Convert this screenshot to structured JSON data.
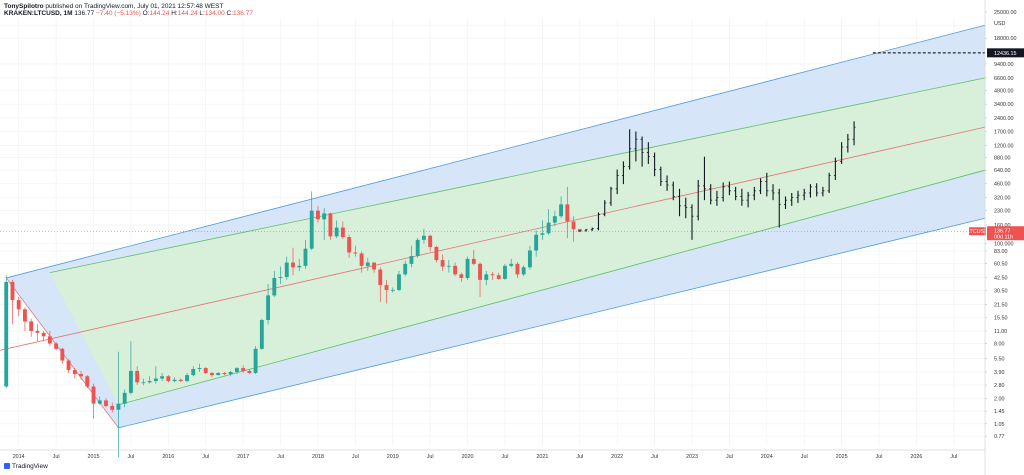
{
  "header": {
    "publisher": "TonySpilotro",
    "published_text": "published on TradingView.com, July 01, 2021 12:57:48 WEST",
    "symbol": "KRAKEN:LTCUSD, 1M",
    "last": "136.77",
    "change": "−7.40 (−5.13%)",
    "o_label": "O:",
    "o_value": "144.24",
    "h_label": "H:",
    "h_value": "144.24",
    "l_label": "L:",
    "l_value": "134.00",
    "c_label": "C:",
    "c_value": "136.77"
  },
  "brand": {
    "name": "TradingView",
    "icon": "tradingview-logo-icon"
  },
  "price_axis": {
    "currency": "USD",
    "ticks": [
      "25000.00",
      "18000.00",
      "12436.15",
      "9400.00",
      "6600.00",
      "4800.00",
      "3400.00",
      "2400.00",
      "1700.00",
      "1200.00",
      "880.00",
      "640.00",
      "460.00",
      "320.00",
      "230.00",
      "160.00",
      "136.77",
      "100.000",
      "83.00",
      "60.50",
      "42.50",
      "30.50",
      "21.50",
      "15.50",
      "11.00",
      "8.00",
      "5.50",
      "3.90",
      "2.80",
      "2.00",
      "1.45",
      "1.05",
      "0.77"
    ],
    "target_label": "12436.15",
    "symbol_tag": "LTCUSD",
    "last_price_label": "136.77",
    "countdown_label": "00d 11h"
  },
  "time_axis": {
    "labels": [
      "2014",
      "Jul",
      "2015",
      "Jul",
      "2016",
      "Jul",
      "2017",
      "Jul",
      "2018",
      "Jul",
      "2019",
      "Jul",
      "2020",
      "Jul",
      "2021",
      "Jul",
      "2022",
      "Jul",
      "2023",
      "Jul",
      "2024",
      "Jul",
      "2025",
      "Jul",
      "2026",
      "Jul"
    ]
  },
  "colors": {
    "up": "#26a69a",
    "down": "#ef5350",
    "bar": "#131722",
    "outer_band": "#cfe2f7",
    "inner_band": "#d8f0d6",
    "outer_line": "#4f9be0",
    "inner_line": "#5fbf63",
    "median_line": "#e57373",
    "target_line": "#000000"
  },
  "chart_data": {
    "type": "candlestick",
    "interval": "1M",
    "y_scale": "log",
    "ylim": [
      0.6,
      30000
    ],
    "xlim": [
      "2013-10",
      "2026-12"
    ],
    "grid": true,
    "candles": [
      {
        "t": "2013-11",
        "o": 2.7,
        "h": 45,
        "l": 2.6,
        "c": 38
      },
      {
        "t": "2013-12",
        "o": 38,
        "h": 40,
        "l": 13,
        "c": 24
      },
      {
        "t": "2014-01",
        "o": 24,
        "h": 26,
        "l": 16,
        "c": 19
      },
      {
        "t": "2014-02",
        "o": 19,
        "h": 20,
        "l": 11,
        "c": 14
      },
      {
        "t": "2014-03",
        "o": 14,
        "h": 15,
        "l": 9.5,
        "c": 11
      },
      {
        "t": "2014-04",
        "o": 11,
        "h": 13,
        "l": 8.5,
        "c": 10.5
      },
      {
        "t": "2014-05",
        "o": 10.5,
        "h": 11,
        "l": 8.5,
        "c": 9.6
      },
      {
        "t": "2014-06",
        "o": 9.6,
        "h": 11,
        "l": 7.5,
        "c": 8.0
      },
      {
        "t": "2014-07",
        "o": 8.0,
        "h": 8.3,
        "l": 6.8,
        "c": 7.0
      },
      {
        "t": "2014-08",
        "o": 7.0,
        "h": 7.2,
        "l": 4.8,
        "c": 5.2
      },
      {
        "t": "2014-09",
        "o": 5.2,
        "h": 5.4,
        "l": 3.8,
        "c": 4.1
      },
      {
        "t": "2014-10",
        "o": 4.1,
        "h": 4.3,
        "l": 3.3,
        "c": 3.7
      },
      {
        "t": "2014-11",
        "o": 3.7,
        "h": 4.0,
        "l": 3.2,
        "c": 3.5
      },
      {
        "t": "2014-12",
        "o": 3.5,
        "h": 3.6,
        "l": 2.6,
        "c": 2.7
      },
      {
        "t": "2015-01",
        "o": 2.7,
        "h": 2.9,
        "l": 1.2,
        "c": 1.75
      },
      {
        "t": "2015-02",
        "o": 1.75,
        "h": 2.1,
        "l": 1.7,
        "c": 1.9
      },
      {
        "t": "2015-03",
        "o": 1.9,
        "h": 2.0,
        "l": 1.6,
        "c": 1.65
      },
      {
        "t": "2015-04",
        "o": 1.65,
        "h": 1.8,
        "l": 1.4,
        "c": 1.5
      },
      {
        "t": "2015-05",
        "o": 1.5,
        "h": 6.5,
        "l": 0.45,
        "c": 1.75
      },
      {
        "t": "2015-06",
        "o": 1.75,
        "h": 2.5,
        "l": 1.6,
        "c": 2.3
      },
      {
        "t": "2015-07",
        "o": 2.3,
        "h": 8.5,
        "l": 2.2,
        "c": 4.0
      },
      {
        "t": "2015-08",
        "o": 4.0,
        "h": 4.5,
        "l": 2.8,
        "c": 3.0
      },
      {
        "t": "2015-09",
        "o": 3.0,
        "h": 3.3,
        "l": 2.8,
        "c": 3.0
      },
      {
        "t": "2015-10",
        "o": 3.0,
        "h": 3.5,
        "l": 2.9,
        "c": 3.1
      },
      {
        "t": "2015-11",
        "o": 3.1,
        "h": 4.5,
        "l": 2.9,
        "c": 3.3
      },
      {
        "t": "2015-12",
        "o": 3.3,
        "h": 3.8,
        "l": 3.1,
        "c": 3.5
      },
      {
        "t": "2016-01",
        "o": 3.5,
        "h": 3.6,
        "l": 3.0,
        "c": 3.1
      },
      {
        "t": "2016-02",
        "o": 3.1,
        "h": 3.4,
        "l": 3.0,
        "c": 3.2
      },
      {
        "t": "2016-03",
        "o": 3.2,
        "h": 3.3,
        "l": 3.0,
        "c": 3.1
      },
      {
        "t": "2016-04",
        "o": 3.1,
        "h": 3.8,
        "l": 3.0,
        "c": 3.6
      },
      {
        "t": "2016-05",
        "o": 3.6,
        "h": 4.5,
        "l": 3.5,
        "c": 4.2
      },
      {
        "t": "2016-06",
        "o": 4.2,
        "h": 4.8,
        "l": 3.9,
        "c": 4.3
      },
      {
        "t": "2016-07",
        "o": 4.3,
        "h": 4.4,
        "l": 3.7,
        "c": 3.8
      },
      {
        "t": "2016-08",
        "o": 3.8,
        "h": 3.9,
        "l": 3.4,
        "c": 3.6
      },
      {
        "t": "2016-09",
        "o": 3.6,
        "h": 3.9,
        "l": 3.6,
        "c": 3.8
      },
      {
        "t": "2016-10",
        "o": 3.8,
        "h": 3.9,
        "l": 3.6,
        "c": 3.7
      },
      {
        "t": "2016-11",
        "o": 3.7,
        "h": 4.0,
        "l": 3.5,
        "c": 3.9
      },
      {
        "t": "2016-12",
        "o": 3.9,
        "h": 4.4,
        "l": 3.7,
        "c": 4.3
      },
      {
        "t": "2017-01",
        "o": 4.3,
        "h": 4.6,
        "l": 3.8,
        "c": 4.0
      },
      {
        "t": "2017-02",
        "o": 4.0,
        "h": 4.2,
        "l": 3.7,
        "c": 3.8
      },
      {
        "t": "2017-03",
        "o": 3.8,
        "h": 7.5,
        "l": 3.7,
        "c": 7.0
      },
      {
        "t": "2017-04",
        "o": 7.0,
        "h": 15,
        "l": 6.8,
        "c": 14.5
      },
      {
        "t": "2017-05",
        "o": 14.5,
        "h": 36,
        "l": 13,
        "c": 27
      },
      {
        "t": "2017-06",
        "o": 27,
        "h": 50,
        "l": 26,
        "c": 42
      },
      {
        "t": "2017-07",
        "o": 42,
        "h": 56,
        "l": 36,
        "c": 43
      },
      {
        "t": "2017-08",
        "o": 43,
        "h": 72,
        "l": 40,
        "c": 62
      },
      {
        "t": "2017-09",
        "o": 62,
        "h": 90,
        "l": 45,
        "c": 55
      },
      {
        "t": "2017-10",
        "o": 55,
        "h": 68,
        "l": 50,
        "c": 57
      },
      {
        "t": "2017-11",
        "o": 57,
        "h": 110,
        "l": 53,
        "c": 88
      },
      {
        "t": "2017-12",
        "o": 88,
        "h": 375,
        "l": 85,
        "c": 230
      },
      {
        "t": "2018-01",
        "o": 230,
        "h": 260,
        "l": 170,
        "c": 185
      },
      {
        "t": "2018-02",
        "o": 185,
        "h": 245,
        "l": 110,
        "c": 215
      },
      {
        "t": "2018-03",
        "o": 215,
        "h": 220,
        "l": 110,
        "c": 120
      },
      {
        "t": "2018-04",
        "o": 120,
        "h": 180,
        "l": 115,
        "c": 150
      },
      {
        "t": "2018-05",
        "o": 150,
        "h": 175,
        "l": 112,
        "c": 118
      },
      {
        "t": "2018-06",
        "o": 118,
        "h": 125,
        "l": 70,
        "c": 80
      },
      {
        "t": "2018-07",
        "o": 80,
        "h": 95,
        "l": 72,
        "c": 78
      },
      {
        "t": "2018-08",
        "o": 78,
        "h": 82,
        "l": 48,
        "c": 57
      },
      {
        "t": "2018-09",
        "o": 57,
        "h": 70,
        "l": 50,
        "c": 62
      },
      {
        "t": "2018-10",
        "o": 62,
        "h": 62,
        "l": 48,
        "c": 52
      },
      {
        "t": "2018-11",
        "o": 52,
        "h": 55,
        "l": 23,
        "c": 35
      },
      {
        "t": "2018-12",
        "o": 35,
        "h": 40,
        "l": 22,
        "c": 31
      },
      {
        "t": "2019-01",
        "o": 31,
        "h": 33,
        "l": 29,
        "c": 31
      },
      {
        "t": "2019-02",
        "o": 31,
        "h": 50,
        "l": 30,
        "c": 46
      },
      {
        "t": "2019-03",
        "o": 46,
        "h": 65,
        "l": 44,
        "c": 60
      },
      {
        "t": "2019-04",
        "o": 60,
        "h": 95,
        "l": 55,
        "c": 73
      },
      {
        "t": "2019-05",
        "o": 73,
        "h": 115,
        "l": 70,
        "c": 110
      },
      {
        "t": "2019-06",
        "o": 110,
        "h": 145,
        "l": 100,
        "c": 122
      },
      {
        "t": "2019-07",
        "o": 122,
        "h": 125,
        "l": 82,
        "c": 92
      },
      {
        "t": "2019-08",
        "o": 92,
        "h": 95,
        "l": 62,
        "c": 66
      },
      {
        "t": "2019-09",
        "o": 66,
        "h": 76,
        "l": 50,
        "c": 56
      },
      {
        "t": "2019-10",
        "o": 56,
        "h": 66,
        "l": 48,
        "c": 57
      },
      {
        "t": "2019-11",
        "o": 57,
        "h": 62,
        "l": 44,
        "c": 46
      },
      {
        "t": "2019-12",
        "o": 46,
        "h": 48,
        "l": 38,
        "c": 42
      },
      {
        "t": "2020-01",
        "o": 42,
        "h": 72,
        "l": 40,
        "c": 68
      },
      {
        "t": "2020-02",
        "o": 68,
        "h": 85,
        "l": 58,
        "c": 60
      },
      {
        "t": "2020-03",
        "o": 60,
        "h": 62,
        "l": 26,
        "c": 40
      },
      {
        "t": "2020-04",
        "o": 40,
        "h": 50,
        "l": 35,
        "c": 46
      },
      {
        "t": "2020-05",
        "o": 46,
        "h": 49,
        "l": 40,
        "c": 45
      },
      {
        "t": "2020-06",
        "o": 45,
        "h": 48,
        "l": 40,
        "c": 41
      },
      {
        "t": "2020-07",
        "o": 41,
        "h": 60,
        "l": 40,
        "c": 57
      },
      {
        "t": "2020-08",
        "o": 57,
        "h": 68,
        "l": 55,
        "c": 60
      },
      {
        "t": "2020-09",
        "o": 60,
        "h": 63,
        "l": 42,
        "c": 46
      },
      {
        "t": "2020-10",
        "o": 46,
        "h": 58,
        "l": 44,
        "c": 55
      },
      {
        "t": "2020-11",
        "o": 55,
        "h": 95,
        "l": 52,
        "c": 84
      },
      {
        "t": "2020-12",
        "o": 84,
        "h": 140,
        "l": 72,
        "c": 125
      },
      {
        "t": "2021-01",
        "o": 125,
        "h": 180,
        "l": 110,
        "c": 130
      },
      {
        "t": "2021-02",
        "o": 130,
        "h": 240,
        "l": 125,
        "c": 170
      },
      {
        "t": "2021-03",
        "o": 170,
        "h": 230,
        "l": 155,
        "c": 200
      },
      {
        "t": "2021-04",
        "o": 200,
        "h": 330,
        "l": 190,
        "c": 270
      },
      {
        "t": "2021-05",
        "o": 270,
        "h": 420,
        "l": 115,
        "c": 175
      },
      {
        "t": "2021-06",
        "o": 175,
        "h": 200,
        "l": 105,
        "c": 144
      },
      {
        "t": "2021-07",
        "o": 144.24,
        "h": 144.24,
        "l": 134.0,
        "c": 136.77
      }
    ],
    "projection_bars": [
      {
        "t": "2021-07",
        "o": 137,
        "h": 140,
        "l": 134,
        "c": 138
      },
      {
        "t": "2021-08",
        "o": 138,
        "h": 145,
        "l": 135,
        "c": 142
      },
      {
        "t": "2021-09",
        "o": 142,
        "h": 150,
        "l": 138,
        "c": 146
      },
      {
        "t": "2021-10",
        "o": 146,
        "h": 220,
        "l": 140,
        "c": 210
      },
      {
        "t": "2021-11",
        "o": 210,
        "h": 300,
        "l": 200,
        "c": 280
      },
      {
        "t": "2021-12",
        "o": 280,
        "h": 420,
        "l": 260,
        "c": 400
      },
      {
        "t": "2022-01",
        "o": 400,
        "h": 650,
        "l": 350,
        "c": 560
      },
      {
        "t": "2022-02",
        "o": 560,
        "h": 800,
        "l": 450,
        "c": 700
      },
      {
        "t": "2022-03",
        "o": 700,
        "h": 1800,
        "l": 650,
        "c": 1100
      },
      {
        "t": "2022-04",
        "o": 1100,
        "h": 1700,
        "l": 800,
        "c": 1400
      },
      {
        "t": "2022-05",
        "o": 1400,
        "h": 1500,
        "l": 700,
        "c": 1000
      },
      {
        "t": "2022-06",
        "o": 1000,
        "h": 1300,
        "l": 750,
        "c": 900
      },
      {
        "t": "2022-07",
        "o": 900,
        "h": 1000,
        "l": 550,
        "c": 650
      },
      {
        "t": "2022-08",
        "o": 650,
        "h": 700,
        "l": 430,
        "c": 480
      },
      {
        "t": "2022-09",
        "o": 480,
        "h": 560,
        "l": 380,
        "c": 440
      },
      {
        "t": "2022-10",
        "o": 440,
        "h": 480,
        "l": 300,
        "c": 330
      },
      {
        "t": "2022-11",
        "o": 330,
        "h": 400,
        "l": 200,
        "c": 260
      },
      {
        "t": "2022-12",
        "o": 260,
        "h": 320,
        "l": 190,
        "c": 250
      },
      {
        "t": "2023-01",
        "o": 250,
        "h": 270,
        "l": 110,
        "c": 200
      },
      {
        "t": "2023-02",
        "o": 200,
        "h": 500,
        "l": 180,
        "c": 430
      },
      {
        "t": "2023-03",
        "o": 430,
        "h": 900,
        "l": 300,
        "c": 400
      },
      {
        "t": "2023-04",
        "o": 400,
        "h": 450,
        "l": 270,
        "c": 300
      },
      {
        "t": "2023-05",
        "o": 300,
        "h": 380,
        "l": 260,
        "c": 320
      },
      {
        "t": "2023-06",
        "o": 320,
        "h": 470,
        "l": 290,
        "c": 420
      },
      {
        "t": "2023-07",
        "o": 420,
        "h": 480,
        "l": 340,
        "c": 380
      },
      {
        "t": "2023-08",
        "o": 380,
        "h": 420,
        "l": 300,
        "c": 330
      },
      {
        "t": "2023-09",
        "o": 330,
        "h": 400,
        "l": 260,
        "c": 300
      },
      {
        "t": "2023-10",
        "o": 300,
        "h": 370,
        "l": 250,
        "c": 340
      },
      {
        "t": "2023-11",
        "o": 340,
        "h": 420,
        "l": 300,
        "c": 380
      },
      {
        "t": "2023-12",
        "o": 380,
        "h": 520,
        "l": 350,
        "c": 480
      },
      {
        "t": "2024-01",
        "o": 480,
        "h": 600,
        "l": 330,
        "c": 380
      },
      {
        "t": "2024-02",
        "o": 380,
        "h": 450,
        "l": 300,
        "c": 360
      },
      {
        "t": "2024-03",
        "o": 360,
        "h": 400,
        "l": 150,
        "c": 270
      },
      {
        "t": "2024-04",
        "o": 270,
        "h": 330,
        "l": 240,
        "c": 300
      },
      {
        "t": "2024-05",
        "o": 300,
        "h": 360,
        "l": 260,
        "c": 320
      },
      {
        "t": "2024-06",
        "o": 320,
        "h": 380,
        "l": 280,
        "c": 340
      },
      {
        "t": "2024-07",
        "o": 340,
        "h": 400,
        "l": 300,
        "c": 360
      },
      {
        "t": "2024-08",
        "o": 360,
        "h": 450,
        "l": 320,
        "c": 420
      },
      {
        "t": "2024-09",
        "o": 420,
        "h": 460,
        "l": 330,
        "c": 360
      },
      {
        "t": "2024-10",
        "o": 360,
        "h": 420,
        "l": 330,
        "c": 380
      },
      {
        "t": "2024-11",
        "o": 380,
        "h": 600,
        "l": 360,
        "c": 560
      },
      {
        "t": "2024-12",
        "o": 560,
        "h": 880,
        "l": 500,
        "c": 800
      },
      {
        "t": "2025-01",
        "o": 800,
        "h": 1300,
        "l": 750,
        "c": 1150
      },
      {
        "t": "2025-02",
        "o": 1150,
        "h": 1600,
        "l": 1000,
        "c": 1400
      },
      {
        "t": "2025-03",
        "o": 1400,
        "h": 2200,
        "l": 1200,
        "c": 1900
      }
    ],
    "channel": {
      "median": [
        [
          "2013-09",
          6.5
        ],
        [
          "2026-12",
          1900
        ]
      ],
      "inner_upper": [
        [
          "2014-06",
          48
        ],
        [
          "2026-12",
          6600
        ]
      ],
      "inner_lower": [
        [
          "2015-05",
          1.7
        ],
        [
          "2026-12",
          640
        ]
      ],
      "outer_upper": [
        [
          "2013-11",
          42
        ],
        [
          "2026-12",
          25000
        ]
      ],
      "outer_lower": [
        [
          "2015-05",
          0.95
        ],
        [
          "2026-12",
          190
        ]
      ]
    },
    "target_level": {
      "value": 12436.15,
      "from": "2025-06",
      "to": "2026-12"
    }
  }
}
